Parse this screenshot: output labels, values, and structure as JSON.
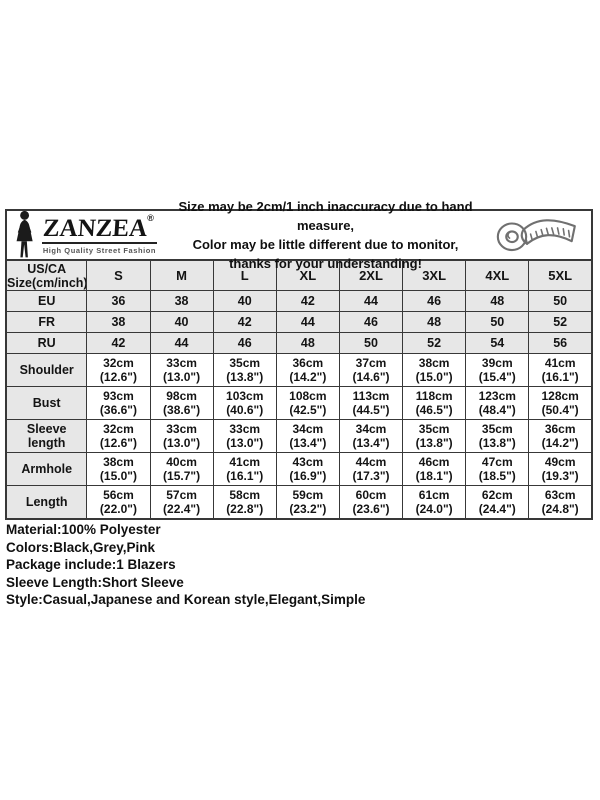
{
  "brand": {
    "name": "ZANZEA",
    "registered_mark": "®",
    "tagline": "High Quality Street Fashion"
  },
  "disclaimer": {
    "line1": "Size may be 2cm/1 inch inaccuracy due to hand measure,",
    "line2": "Color may be little different due to monitor,",
    "line3": "thanks for your understanding!"
  },
  "icons": {
    "logo_icon": "woman-silhouette-icon",
    "tape_icon": "measuring-tape-icon"
  },
  "colors": {
    "cell_grey": "#e7e7e7",
    "border": "#383838",
    "text": "#141414",
    "tagline_grey": "#555555",
    "tape_grey": "#707070"
  },
  "size_table": {
    "corner": [
      "US/CA",
      "Size(cm/inch)"
    ],
    "sizes": [
      "S",
      "M",
      "L",
      "XL",
      "2XL",
      "3XL",
      "4XL",
      "5XL"
    ],
    "conversion_rows": [
      {
        "label": "EU",
        "values": [
          "36",
          "38",
          "40",
          "42",
          "44",
          "46",
          "48",
          "50"
        ]
      },
      {
        "label": "FR",
        "values": [
          "38",
          "40",
          "42",
          "44",
          "46",
          "48",
          "50",
          "52"
        ]
      },
      {
        "label": "RU",
        "values": [
          "42",
          "44",
          "46",
          "48",
          "50",
          "52",
          "54",
          "56"
        ]
      }
    ],
    "measurement_rows": [
      {
        "label": "Shoulder",
        "values": [
          "32cm\n(12.6\")",
          "33cm\n(13.0\")",
          "35cm\n(13.8\")",
          "36cm\n(14.2\")",
          "37cm\n(14.6\")",
          "38cm\n(15.0\")",
          "39cm\n(15.4\")",
          "41cm\n(16.1\")"
        ]
      },
      {
        "label": "Bust",
        "values": [
          "93cm\n(36.6\")",
          "98cm\n(38.6\")",
          "103cm\n(40.6\")",
          "108cm\n(42.5\")",
          "113cm\n(44.5\")",
          "118cm\n(46.5\")",
          "123cm\n(48.4\")",
          "128cm\n(50.4\")"
        ]
      },
      {
        "label": "Sleeve length",
        "values": [
          "32cm\n(12.6\")",
          "33cm\n(13.0\")",
          "33cm\n(13.0\")",
          "34cm\n(13.4\")",
          "34cm\n(13.4\")",
          "35cm\n(13.8\")",
          "35cm\n(13.8\")",
          "36cm\n(14.2\")"
        ]
      },
      {
        "label": "Armhole",
        "values": [
          "38cm\n(15.0\")",
          "40cm\n(15.7\")",
          "41cm\n(16.1\")",
          "43cm\n(16.9\")",
          "44cm\n(17.3\")",
          "46cm\n(18.1\")",
          "47cm\n(18.5\")",
          "49cm\n(19.3\")"
        ]
      },
      {
        "label": "Length",
        "values": [
          "56cm\n(22.0\")",
          "57cm\n(22.4\")",
          "58cm\n(22.8\")",
          "59cm\n(23.2\")",
          "60cm\n(23.6\")",
          "61cm\n(24.0\")",
          "62cm\n(24.4\")",
          "63cm\n(24.8\")"
        ]
      }
    ]
  },
  "specs": [
    "Material:100% Polyester",
    "Colors:Black,Grey,Pink",
    "Package include:1 Blazers",
    "Sleeve Length:Short Sleeve",
    "Style:Casual,Japanese and Korean style,Elegant,Simple"
  ]
}
